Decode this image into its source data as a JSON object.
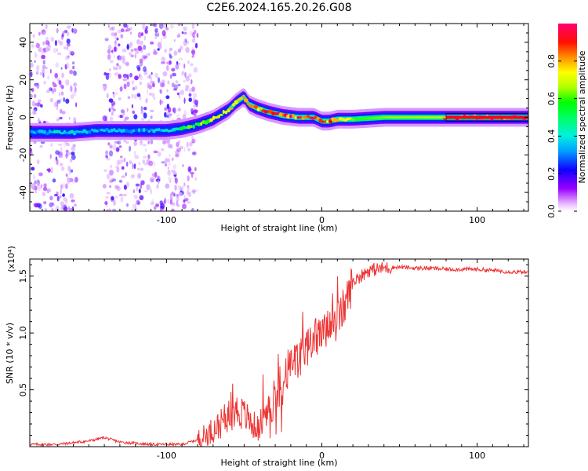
{
  "title": "C2E6.2024.165.20.26.G08",
  "chart_data": [
    {
      "type": "heatmap",
      "name": "spectrogram",
      "xlabel": "Height of straight line (km)",
      "ylabel": "Frequency (Hz)",
      "xlim": [
        -188,
        133
      ],
      "ylim": [
        -50,
        50
      ],
      "xticks": [
        -100,
        0,
        100
      ],
      "yticks": [
        -40,
        -20,
        0,
        20,
        40
      ],
      "colorbar": {
        "label": "Normalized spectral amplitude",
        "range": [
          0,
          1
        ],
        "ticks": [
          0.0,
          0.2,
          0.4,
          0.6,
          0.8
        ],
        "colormap": [
          "#ffffff",
          "#9400ff",
          "#0000ff",
          "#00c8ff",
          "#00ff80",
          "#00ff00",
          "#c8ff00",
          "#ffff00",
          "#ff8000",
          "#ff0000",
          "#ff0080"
        ]
      },
      "ridge": {
        "x": [
          -188,
          -175,
          -160,
          -145,
          -130,
          -115,
          -100,
          -90,
          -80,
          -70,
          -60,
          -55,
          -50,
          -47,
          -42,
          -35,
          -25,
          -15,
          -5,
          0,
          5,
          10,
          20,
          40,
          80,
          133
        ],
        "y": [
          -8,
          -8,
          -8,
          -7,
          -7,
          -7,
          -7,
          -6,
          -4,
          -1,
          4,
          8,
          11,
          7,
          5,
          3,
          1,
          0,
          0,
          -2,
          -2,
          -1,
          -1,
          0,
          0,
          0
        ],
        "peak_amplitude": [
          0.3,
          0.35,
          0.35,
          0.32,
          0.32,
          0.32,
          0.35,
          0.5,
          0.6,
          0.7,
          0.75,
          0.8,
          0.8,
          0.85,
          0.9,
          0.95,
          0.95,
          0.95,
          0.95,
          0.9,
          0.9,
          0.85,
          0.6,
          0.55,
          0.95,
          0.95
        ]
      },
      "noise_bands_km": [
        [
          -188,
          -158
        ],
        [
          -140,
          -80
        ]
      ]
    },
    {
      "type": "line",
      "name": "snr",
      "xlabel": "Height of straight line (km)",
      "ylabel": "SNR (10 * v/v)",
      "y_multiplier": "(x10⁴)",
      "xlim": [
        -188,
        133
      ],
      "ylim": [
        0,
        1.65
      ],
      "xticks": [
        -100,
        0,
        100
      ],
      "yticks": [
        0.5,
        1.0,
        1.5
      ],
      "ytick_labels": [
        "0.5",
        "1.0",
        "1.5"
      ],
      "color": "#ee3333",
      "series": {
        "x": [
          -188,
          -170,
          -150,
          -140,
          -130,
          -110,
          -90,
          -85,
          -80,
          -75,
          -70,
          -65,
          -60,
          -55,
          -50,
          -45,
          -40,
          -35,
          -30,
          -25,
          -20,
          -15,
          -10,
          -5,
          0,
          5,
          10,
          15,
          20,
          25,
          30,
          40,
          50,
          60,
          70,
          80,
          90,
          100,
          110,
          120,
          133
        ],
        "y": [
          0.02,
          0.02,
          0.05,
          0.08,
          0.04,
          0.02,
          0.02,
          0.04,
          0.06,
          0.1,
          0.15,
          0.2,
          0.28,
          0.32,
          0.28,
          0.2,
          0.15,
          0.3,
          0.45,
          0.55,
          0.7,
          0.75,
          0.85,
          0.95,
          1.0,
          1.05,
          1.1,
          1.25,
          1.45,
          1.5,
          1.55,
          1.57,
          1.58,
          1.57,
          1.57,
          1.56,
          1.56,
          1.56,
          1.55,
          1.54,
          1.53
        ]
      }
    }
  ]
}
